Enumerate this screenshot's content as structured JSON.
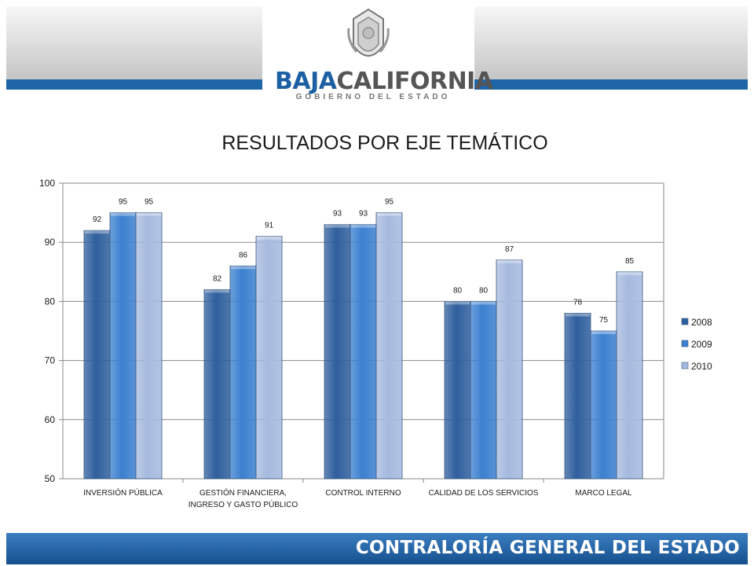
{
  "header": {
    "logo_main": "BAJA",
    "logo_main2": "CALIFORNIA",
    "logo_sub": "GOBIERNO DEL ESTADO"
  },
  "footer": {
    "text": "CONTRALORÍA GENERAL DEL ESTADO"
  },
  "colors": {
    "s2008": "#2f5f9e",
    "s2009": "#3c80d0",
    "s2010": "#a6badf",
    "brand": "#1f66a8"
  },
  "chart_data": {
    "type": "bar",
    "title": "RESULTADOS POR EJE TEMÁTICO",
    "categories": [
      [
        "INVERSIÓN PÚBLICA"
      ],
      [
        "GESTIÓN FINANCIERA,",
        "INGRESO Y GASTO PÚBLICO"
      ],
      [
        "CONTROL INTERNO"
      ],
      [
        "CALIDAD DE LOS SERVICIOS"
      ],
      [
        "MARCO LEGAL"
      ]
    ],
    "series": [
      {
        "name": "2008",
        "values": [
          92,
          82,
          93,
          80,
          78
        ]
      },
      {
        "name": "2009",
        "values": [
          95,
          86,
          93,
          80,
          75
        ]
      },
      {
        "name": "2010",
        "values": [
          95,
          91,
          95,
          87,
          85
        ]
      }
    ],
    "ylim": [
      50,
      100
    ],
    "yticks": [
      "50",
      "60",
      "70",
      "80",
      "90",
      "100"
    ],
    "grid": true,
    "legend_position": "right"
  }
}
